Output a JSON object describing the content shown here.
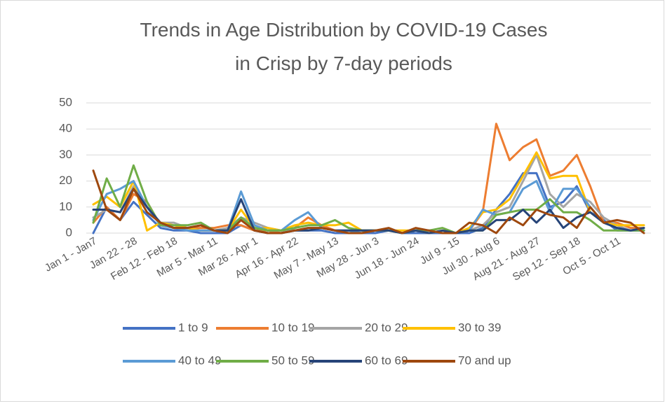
{
  "chart_data": {
    "type": "line",
    "title": [
      "Trends in Age Distribution by COVID-19 Cases",
      "in Crisp by 7-day periods"
    ],
    "categories": [
      "Jan 1 - Jan7",
      null,
      null,
      "Jan 22 - 28",
      null,
      null,
      "Feb 12 - Feb 18",
      null,
      null,
      "Mar 5 - Mar 11",
      null,
      null,
      "Mar 26 - Apr 1",
      null,
      null,
      "Apr 16 - Apr 22",
      null,
      null,
      "May 7 - May 13",
      null,
      null,
      "May 28 - Jun 3",
      null,
      null,
      "Jun 18 - Jun 24",
      null,
      null,
      "Jul 9 - 15",
      null,
      null,
      "Jul 30 - Aug 6",
      null,
      null,
      "Aug 21 - Aug 27",
      null,
      null,
      "Sep 12 - Sep 18",
      null,
      null,
      "Oct 5 - Oct 11",
      null,
      null
    ],
    "series": [
      {
        "name": "1 to 9",
        "color": "#4472c4",
        "values": [
          0,
          10,
          5,
          12,
          7,
          2,
          1,
          1,
          0,
          0,
          0,
          3,
          1,
          0,
          0,
          1,
          1,
          1,
          0,
          0,
          0,
          0,
          1,
          0,
          0,
          0,
          0,
          0,
          0,
          2,
          9,
          15,
          23,
          23,
          10,
          12,
          18,
          8,
          5,
          1,
          1,
          1
        ]
      },
      {
        "name": "10 to 19",
        "color": "#ed7d31",
        "values": [
          4,
          10,
          5,
          15,
          12,
          3,
          2,
          2,
          2,
          2,
          3,
          3,
          1,
          1,
          0,
          2,
          6,
          3,
          1,
          0,
          0,
          1,
          1,
          0,
          1,
          1,
          0,
          0,
          1,
          8,
          42,
          28,
          33,
          36,
          22,
          24,
          30,
          18,
          4,
          4,
          2,
          2
        ]
      },
      {
        "name": "20 to 29",
        "color": "#a5a5a5",
        "values": [
          6,
          9,
          8,
          18,
          10,
          4,
          4,
          2,
          1,
          1,
          2,
          6,
          4,
          2,
          1,
          1,
          2,
          2,
          1,
          0,
          0,
          1,
          1,
          0,
          1,
          1,
          0,
          0,
          1,
          3,
          8,
          10,
          20,
          30,
          15,
          10,
          15,
          12,
          6,
          3,
          1,
          2
        ]
      },
      {
        "name": "30 to 39",
        "color": "#ffc000",
        "values": [
          11,
          14,
          10,
          20,
          1,
          4,
          3,
          2,
          1,
          1,
          1,
          9,
          2,
          2,
          1,
          3,
          4,
          3,
          3,
          4,
          1,
          1,
          1,
          1,
          1,
          0,
          1,
          0,
          2,
          8,
          9,
          13,
          22,
          31,
          21,
          22,
          22,
          8,
          4,
          3,
          3,
          3
        ]
      },
      {
        "name": "40 to 49",
        "color": "#5b9bd5",
        "values": [
          5,
          15,
          17,
          20,
          10,
          3,
          2,
          1,
          1,
          1,
          1,
          16,
          3,
          1,
          1,
          5,
          8,
          2,
          1,
          1,
          0,
          1,
          1,
          0,
          1,
          1,
          0,
          0,
          1,
          9,
          7,
          8,
          17,
          20,
          8,
          17,
          17,
          10,
          4,
          2,
          1,
          1
        ]
      },
      {
        "name": "50 to 59",
        "color": "#70ad47",
        "values": [
          4,
          21,
          10,
          26,
          12,
          3,
          3,
          3,
          4,
          1,
          1,
          6,
          2,
          1,
          1,
          2,
          3,
          3,
          5,
          2,
          1,
          1,
          1,
          0,
          1,
          1,
          2,
          0,
          1,
          1,
          7,
          8,
          9,
          9,
          13,
          8,
          8,
          5,
          1,
          1,
          1,
          1
        ]
      },
      {
        "name": "60 to 69",
        "color": "#264478",
        "values": [
          9,
          9,
          8,
          17,
          10,
          4,
          2,
          2,
          3,
          1,
          1,
          13,
          1,
          0,
          0,
          1,
          1,
          2,
          1,
          1,
          1,
          1,
          1,
          0,
          1,
          0,
          1,
          0,
          1,
          1,
          5,
          5,
          9,
          4,
          9,
          2,
          6,
          8,
          4,
          2,
          1,
          2
        ]
      },
      {
        "name": "70 and up",
        "color": "#9e480e",
        "values": [
          24,
          9,
          5,
          17,
          8,
          4,
          2,
          2,
          3,
          1,
          0,
          5,
          1,
          0,
          0,
          1,
          2,
          2,
          1,
          0,
          0,
          1,
          2,
          0,
          2,
          1,
          0,
          0,
          4,
          3,
          0,
          6,
          3,
          9,
          7,
          6,
          2,
          10,
          4,
          5,
          4,
          0
        ]
      }
    ],
    "ylim": [
      0,
      50
    ],
    "yticks": [
      0,
      10,
      20,
      30,
      40,
      50
    ],
    "grid": true,
    "legend": "bottom"
  }
}
